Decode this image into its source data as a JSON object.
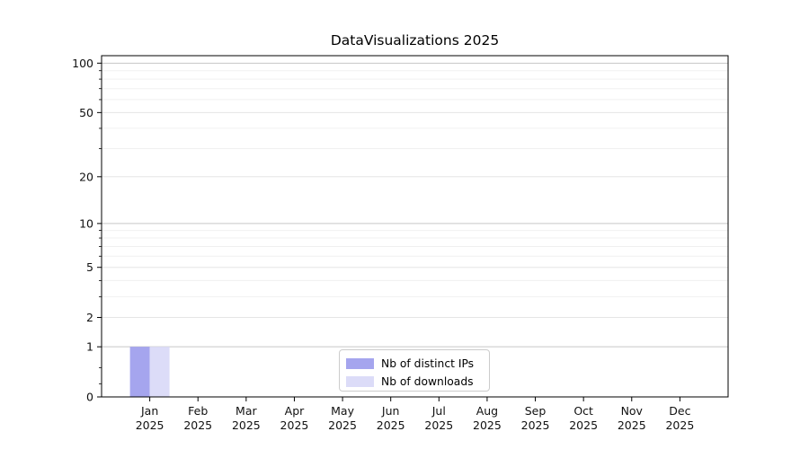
{
  "chart_data": {
    "type": "bar",
    "title": "DataVisualizations 2025",
    "categories": [
      [
        "Jan",
        "2025"
      ],
      [
        "Feb",
        "2025"
      ],
      [
        "Mar",
        "2025"
      ],
      [
        "Apr",
        "2025"
      ],
      [
        "May",
        "2025"
      ],
      [
        "Jun",
        "2025"
      ],
      [
        "Jul",
        "2025"
      ],
      [
        "Aug",
        "2025"
      ],
      [
        "Sep",
        "2025"
      ],
      [
        "Oct",
        "2025"
      ],
      [
        "Nov",
        "2025"
      ],
      [
        "Dec",
        "2025"
      ]
    ],
    "series": [
      {
        "name": "Nb of distinct IPs",
        "color": "#a5a5ee",
        "values": [
          1,
          0,
          0,
          0,
          0,
          0,
          0,
          0,
          0,
          0,
          0,
          0
        ]
      },
      {
        "name": "Nb of downloads",
        "color": "#dcdcf8",
        "values": [
          1,
          0,
          0,
          0,
          0,
          0,
          0,
          0,
          0,
          0,
          0,
          0
        ]
      }
    ],
    "y_axis": {
      "scale": "log1p",
      "ticks": [
        0,
        1,
        2,
        5,
        10,
        20,
        50,
        100
      ],
      "minor_ticks": [
        0.2,
        0.5,
        3,
        4,
        6,
        7,
        8,
        9,
        30,
        40,
        60,
        70,
        80,
        90
      ],
      "max": 111
    },
    "legend": {
      "position": "lower center"
    },
    "grid": "on",
    "xlabel": "",
    "ylabel": ""
  }
}
